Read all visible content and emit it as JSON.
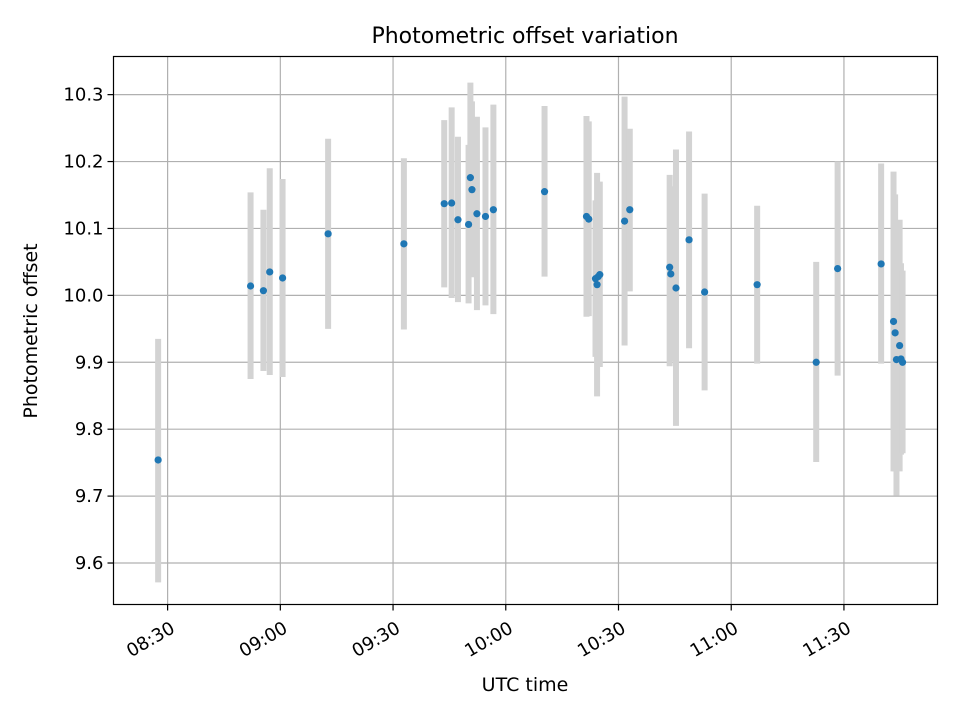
{
  "chart_data": {
    "type": "scatter",
    "title": "Photometric offset variation",
    "xlabel": "UTC time",
    "ylabel": "Photometric offset",
    "grid": true,
    "xlim": [
      8.26,
      11.915
    ],
    "ylim": [
      9.538,
      10.357
    ],
    "x_ticks": [
      {
        "value": 8.5,
        "label": "08:30"
      },
      {
        "value": 9.0,
        "label": "09:00"
      },
      {
        "value": 9.5,
        "label": "09:30"
      },
      {
        "value": 10.0,
        "label": "10:00"
      },
      {
        "value": 10.5,
        "label": "10:30"
      },
      {
        "value": 11.0,
        "label": "11:00"
      },
      {
        "value": 11.5,
        "label": "11:30"
      }
    ],
    "y_ticks": [
      {
        "value": 9.6,
        "label": "9.6"
      },
      {
        "value": 9.7,
        "label": "9.7"
      },
      {
        "value": 9.8,
        "label": "9.8"
      },
      {
        "value": 9.9,
        "label": "9.9"
      },
      {
        "value": 10.0,
        "label": "10.0"
      },
      {
        "value": 10.1,
        "label": "10.1"
      },
      {
        "value": 10.2,
        "label": "10.2"
      },
      {
        "value": 10.3,
        "label": "10.3"
      }
    ],
    "point_color": "#1f77b4",
    "errorbar_color": "#d3d3d3",
    "points": [
      {
        "x": 8.458,
        "y": 9.754,
        "lo": 9.571,
        "hi": 9.935
      },
      {
        "x": 8.868,
        "y": 10.014,
        "lo": 9.875,
        "hi": 10.154
      },
      {
        "x": 8.925,
        "y": 10.007,
        "lo": 9.887,
        "hi": 10.128
      },
      {
        "x": 8.953,
        "y": 10.035,
        "lo": 9.881,
        "hi": 10.19
      },
      {
        "x": 9.01,
        "y": 10.026,
        "lo": 9.878,
        "hi": 10.174
      },
      {
        "x": 9.212,
        "y": 10.092,
        "lo": 9.95,
        "hi": 10.234
      },
      {
        "x": 9.548,
        "y": 10.077,
        "lo": 9.949,
        "hi": 10.205
      },
      {
        "x": 9.727,
        "y": 10.137,
        "lo": 10.012,
        "hi": 10.262
      },
      {
        "x": 9.76,
        "y": 10.138,
        "lo": 9.996,
        "hi": 10.281
      },
      {
        "x": 9.788,
        "y": 10.113,
        "lo": 9.99,
        "hi": 10.237
      },
      {
        "x": 9.835,
        "y": 10.106,
        "lo": 9.988,
        "hi": 10.225
      },
      {
        "x": 9.843,
        "y": 10.176,
        "lo": 10.034,
        "hi": 10.318
      },
      {
        "x": 9.85,
        "y": 10.158,
        "lo": 10.027,
        "hi": 10.29
      },
      {
        "x": 9.872,
        "y": 10.122,
        "lo": 9.978,
        "hi": 10.267
      },
      {
        "x": 9.91,
        "y": 10.118,
        "lo": 9.985,
        "hi": 10.251
      },
      {
        "x": 9.945,
        "y": 10.128,
        "lo": 9.972,
        "hi": 10.285
      },
      {
        "x": 10.172,
        "y": 10.155,
        "lo": 10.028,
        "hi": 10.283
      },
      {
        "x": 10.358,
        "y": 10.118,
        "lo": 9.968,
        "hi": 10.268
      },
      {
        "x": 10.368,
        "y": 10.114,
        "lo": 9.969,
        "hi": 10.26
      },
      {
        "x": 10.398,
        "y": 10.025,
        "lo": 9.908,
        "hi": 10.142
      },
      {
        "x": 10.405,
        "y": 10.016,
        "lo": 9.849,
        "hi": 10.183
      },
      {
        "x": 10.41,
        "y": 10.028,
        "lo": 9.895,
        "hi": 10.161
      },
      {
        "x": 10.417,
        "y": 10.031,
        "lo": 9.893,
        "hi": 10.17
      },
      {
        "x": 10.527,
        "y": 10.111,
        "lo": 9.925,
        "hi": 10.297
      },
      {
        "x": 10.55,
        "y": 10.128,
        "lo": 10.006,
        "hi": 10.249
      },
      {
        "x": 10.727,
        "y": 10.042,
        "lo": 9.894,
        "hi": 10.18
      },
      {
        "x": 10.732,
        "y": 10.032,
        "lo": 9.902,
        "hi": 10.163
      },
      {
        "x": 10.755,
        "y": 10.011,
        "lo": 9.805,
        "hi": 10.218
      },
      {
        "x": 10.813,
        "y": 10.083,
        "lo": 9.921,
        "hi": 10.245
      },
      {
        "x": 10.882,
        "y": 10.005,
        "lo": 9.858,
        "hi": 10.152
      },
      {
        "x": 11.115,
        "y": 10.016,
        "lo": 9.898,
        "hi": 10.134
      },
      {
        "x": 11.377,
        "y": 9.9,
        "lo": 9.751,
        "hi": 10.05
      },
      {
        "x": 11.472,
        "y": 10.04,
        "lo": 9.88,
        "hi": 10.2
      },
      {
        "x": 11.665,
        "y": 10.047,
        "lo": 9.898,
        "hi": 10.197
      },
      {
        "x": 11.72,
        "y": 9.961,
        "lo": 9.737,
        "hi": 10.185
      },
      {
        "x": 11.727,
        "y": 9.944,
        "lo": 9.737,
        "hi": 10.151
      },
      {
        "x": 11.733,
        "y": 9.904,
        "lo": 9.701,
        "hi": 10.107
      },
      {
        "x": 11.747,
        "y": 9.925,
        "lo": 9.737,
        "hi": 10.113
      },
      {
        "x": 11.753,
        "y": 9.905,
        "lo": 9.762,
        "hi": 10.048
      },
      {
        "x": 11.76,
        "y": 9.9,
        "lo": 9.764,
        "hi": 10.037
      }
    ]
  }
}
